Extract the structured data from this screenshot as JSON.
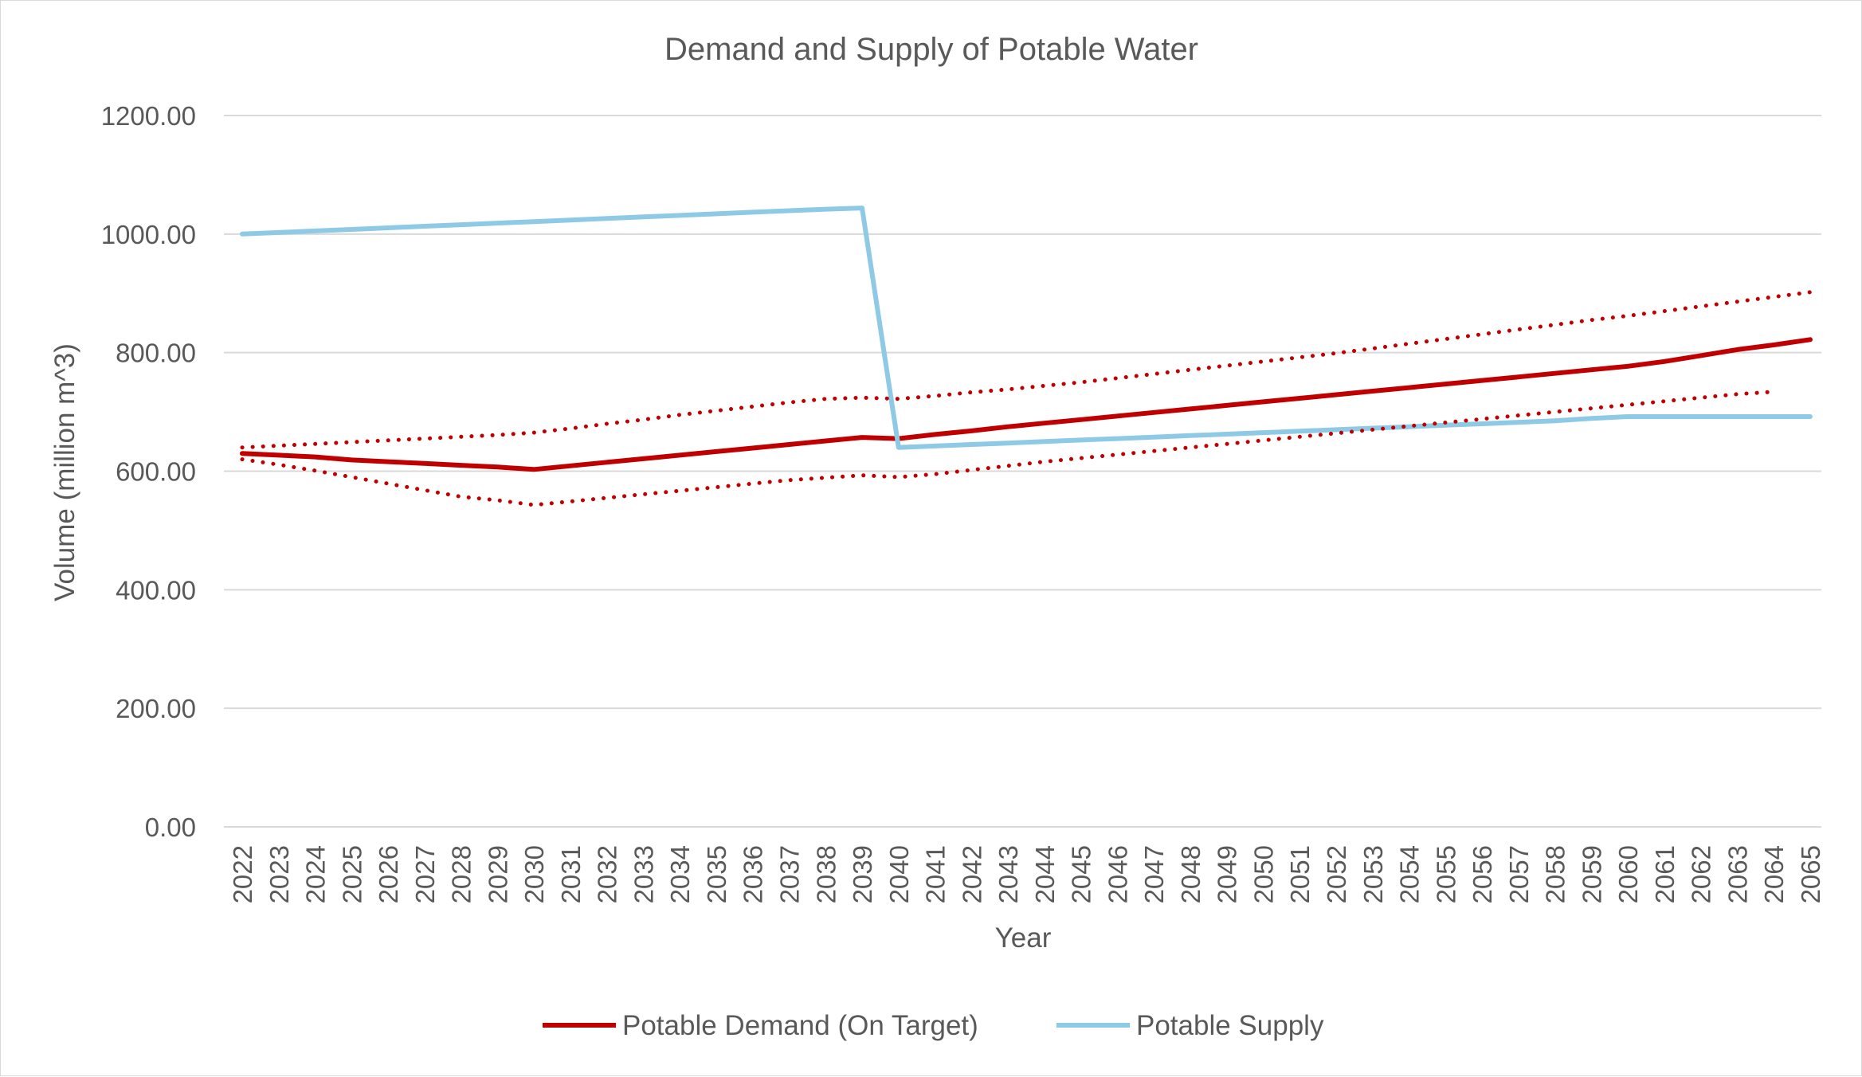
{
  "chart_data": {
    "type": "line",
    "title": "Demand and Supply of Potable Water",
    "xlabel": "Year",
    "ylabel": "Volume (million m^3)",
    "ylim": [
      0,
      1200
    ],
    "yticks": [
      "0.00",
      "200.00",
      "400.00",
      "600.00",
      "800.00",
      "1000.00",
      "1200.00"
    ],
    "yticks_values": [
      0,
      200,
      400,
      600,
      800,
      1000,
      1200
    ],
    "grid": true,
    "legend_position": "bottom",
    "categories": [
      "2022",
      "2023",
      "2024",
      "2025",
      "2026",
      "2027",
      "2028",
      "2029",
      "2030",
      "2031",
      "2032",
      "2033",
      "2034",
      "2035",
      "2036",
      "2037",
      "2038",
      "2039",
      "2040",
      "2041",
      "2042",
      "2043",
      "2044",
      "2045",
      "2046",
      "2047",
      "2048",
      "2049",
      "2050",
      "2051",
      "2052",
      "2053",
      "2054",
      "2055",
      "2056",
      "2057",
      "2058",
      "2059",
      "2060",
      "2061",
      "2062",
      "2063",
      "2064",
      "2065"
    ],
    "series": [
      {
        "name": "Potable Demand (On Target)",
        "color": "#c00000",
        "style": "solid",
        "in_legend": true,
        "values": [
          630,
          627,
          624,
          619,
          616,
          613,
          610,
          607,
          603,
          609,
          615,
          621,
          627,
          633,
          639,
          645,
          651,
          657,
          655,
          662,
          668,
          675,
          681,
          687,
          693,
          699,
          705,
          711,
          717,
          723,
          729,
          735,
          741,
          747,
          753,
          759,
          765,
          771,
          777,
          785,
          795,
          805,
          813,
          822
        ]
      },
      {
        "name": "Potable Supply",
        "color": "#8ecae6",
        "style": "solid",
        "in_legend": true,
        "values": [
          1000,
          1002.6,
          1005.3,
          1007.9,
          1010.5,
          1013.2,
          1015.8,
          1018.4,
          1021,
          1023.6,
          1026.3,
          1028.9,
          1031.5,
          1034.2,
          1036.8,
          1039.4,
          1042,
          1044,
          640,
          642.5,
          645,
          647.5,
          650,
          652.5,
          655,
          657.5,
          660,
          662.5,
          665,
          667.5,
          670,
          672.5,
          675,
          677.5,
          680,
          682.5,
          685,
          689,
          692,
          692,
          692,
          692,
          692,
          692
        ]
      },
      {
        "name": "",
        "color": "#c00000",
        "style": "dotted",
        "in_legend": false,
        "values": [
          640,
          643,
          646,
          649,
          652,
          655,
          658,
          661,
          665,
          672,
          680,
          687,
          695,
          702,
          709,
          716,
          722,
          724,
          722,
          727,
          733,
          738,
          744,
          750,
          757,
          764,
          771,
          778,
          785,
          792,
          799,
          807,
          815,
          823,
          831,
          839,
          847,
          855,
          862,
          870,
          878,
          886,
          894,
          902
        ]
      },
      {
        "name": "",
        "color": "#c00000",
        "style": "dotted",
        "in_legend": false,
        "values": [
          620,
          611,
          601,
          590,
          579,
          568,
          557,
          551,
          543,
          549,
          555,
          561,
          567,
          573,
          579,
          585,
          589,
          593,
          590,
          595,
          602,
          609,
          616,
          622,
          628,
          634,
          640,
          646,
          652,
          658,
          664,
          670,
          676,
          682,
          688,
          694,
          700,
          706,
          712,
          718,
          724,
          730,
          734,
          null
        ]
      }
    ]
  }
}
